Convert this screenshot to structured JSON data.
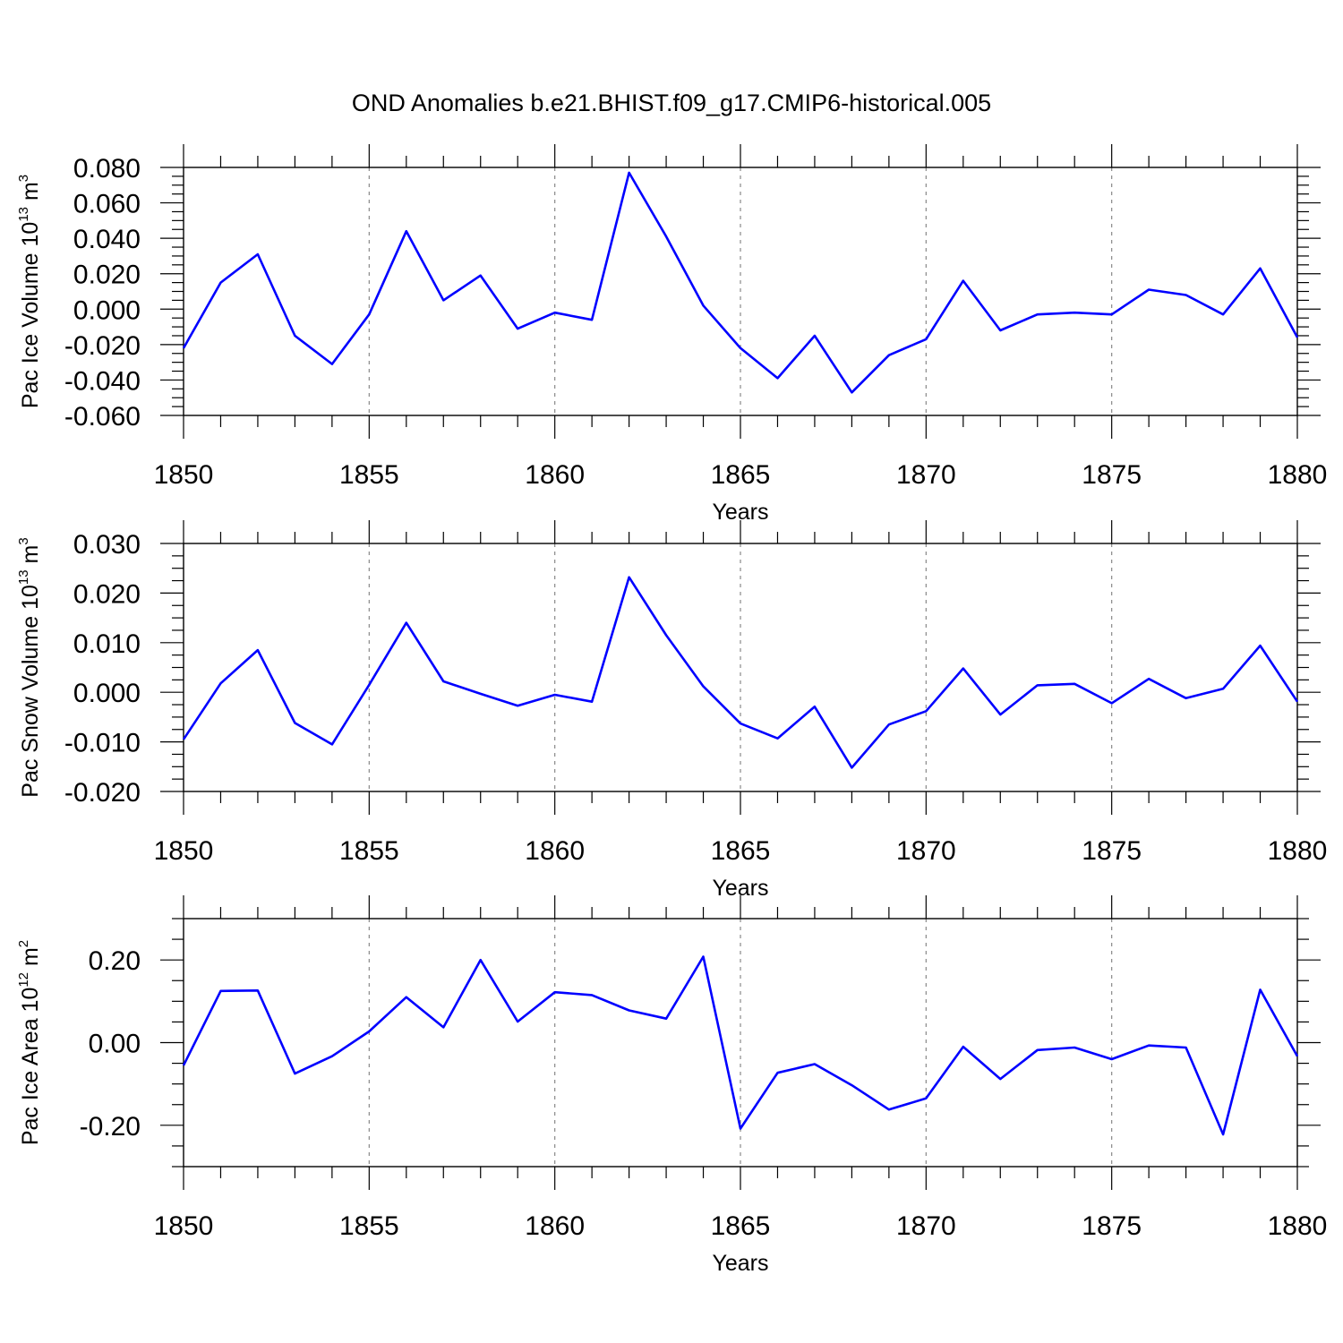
{
  "title": "OND Anomalies b.e21.BHIST.f09_g17.CMIP6-historical.005",
  "chart_data": [
    {
      "type": "line",
      "title": "",
      "xlabel": "Years",
      "ylabel_prefix": "Pac Ice Volume 10",
      "ylabel_exp": "13",
      "ylabel_unit": " m",
      "ylabel_unit_exp": "3",
      "xlim": [
        1850,
        1880
      ],
      "ylim": [
        -0.06,
        0.08
      ],
      "xticks": [
        1850,
        1855,
        1860,
        1865,
        1870,
        1875,
        1880
      ],
      "xtick_labels": [
        "1850",
        "1855",
        "1860",
        "1865",
        "1870",
        "1875",
        "1880"
      ],
      "yticks": [
        -0.06,
        -0.04,
        -0.02,
        0.0,
        0.02,
        0.04,
        0.06,
        0.08
      ],
      "ytick_labels": [
        "-0.060",
        "-0.040",
        "-0.020",
        "0.000",
        "0.020",
        "0.040",
        "0.060",
        "0.080"
      ],
      "grid": "vertical dashed at major x ticks",
      "color": "#0000ff",
      "x": [
        1850,
        1851,
        1852,
        1853,
        1854,
        1855,
        1856,
        1857,
        1858,
        1859,
        1860,
        1861,
        1862,
        1863,
        1864,
        1865,
        1866,
        1867,
        1868,
        1869,
        1870,
        1871,
        1872,
        1873,
        1874,
        1875,
        1876,
        1877,
        1878,
        1879,
        1880
      ],
      "y": [
        -0.022,
        0.015,
        0.031,
        -0.015,
        -0.031,
        -0.003,
        0.044,
        0.005,
        0.019,
        -0.011,
        -0.002,
        -0.006,
        0.077,
        0.041,
        0.002,
        -0.022,
        -0.039,
        -0.015,
        -0.047,
        -0.026,
        -0.017,
        0.016,
        -0.012,
        -0.003,
        -0.002,
        -0.003,
        0.011,
        0.008,
        -0.003,
        0.023,
        -0.016
      ]
    },
    {
      "type": "line",
      "title": "",
      "xlabel": "Years",
      "ylabel_prefix": "Pac Snow Volume 10",
      "ylabel_exp": "13",
      "ylabel_unit": " m",
      "ylabel_unit_exp": "3",
      "xlim": [
        1850,
        1880
      ],
      "ylim": [
        -0.02,
        0.03
      ],
      "xticks": [
        1850,
        1855,
        1860,
        1865,
        1870,
        1875,
        1880
      ],
      "xtick_labels": [
        "1850",
        "1855",
        "1860",
        "1865",
        "1870",
        "1875",
        "1880"
      ],
      "yticks": [
        -0.02,
        -0.01,
        0.0,
        0.01,
        0.02,
        0.03
      ],
      "ytick_labels": [
        "-0.020",
        "-0.010",
        "0.000",
        "0.010",
        "0.020",
        "0.030"
      ],
      "grid": "vertical dashed at major x ticks",
      "color": "#0000ff",
      "x": [
        1850,
        1851,
        1852,
        1853,
        1854,
        1855,
        1856,
        1857,
        1858,
        1859,
        1860,
        1861,
        1862,
        1863,
        1864,
        1865,
        1866,
        1867,
        1868,
        1869,
        1870,
        1871,
        1872,
        1873,
        1874,
        1875,
        1876,
        1877,
        1878,
        1879,
        1880
      ],
      "y": [
        -0.0095,
        0.0018,
        0.0085,
        -0.0062,
        -0.0105,
        0.0015,
        0.014,
        0.0022,
        -0.0003,
        -0.0027,
        -0.0005,
        -0.0019,
        0.0232,
        0.0115,
        0.0012,
        -0.0063,
        -0.0093,
        -0.0029,
        -0.0152,
        -0.0065,
        -0.0038,
        0.0048,
        -0.0045,
        0.0014,
        0.0017,
        -0.0022,
        0.0027,
        -0.0012,
        0.0007,
        0.0094,
        -0.0019
      ]
    },
    {
      "type": "line",
      "title": "",
      "xlabel": "Years",
      "ylabel_prefix": "Pac Ice Area 10",
      "ylabel_exp": "12",
      "ylabel_unit": " m",
      "ylabel_unit_exp": "2",
      "xlim": [
        1850,
        1880
      ],
      "ylim": [
        -0.3,
        0.3
      ],
      "xticks": [
        1850,
        1855,
        1860,
        1865,
        1870,
        1875,
        1880
      ],
      "xtick_labels": [
        "1850",
        "1855",
        "1860",
        "1865",
        "1870",
        "1875",
        "1880"
      ],
      "yticks": [
        -0.2,
        0.0,
        0.2
      ],
      "ytick_labels": [
        "-0.20",
        "0.00",
        "0.20"
      ],
      "grid": "vertical dashed at major x ticks",
      "color": "#0000ff",
      "x": [
        1850,
        1851,
        1852,
        1853,
        1854,
        1855,
        1856,
        1857,
        1858,
        1859,
        1860,
        1861,
        1862,
        1863,
        1864,
        1865,
        1866,
        1867,
        1868,
        1869,
        1870,
        1871,
        1872,
        1873,
        1874,
        1875,
        1876,
        1877,
        1878,
        1879,
        1880
      ],
      "y": [
        -0.055,
        0.125,
        0.126,
        -0.075,
        -0.033,
        0.027,
        0.11,
        0.037,
        0.2,
        0.051,
        0.122,
        0.115,
        0.078,
        0.058,
        0.208,
        -0.208,
        -0.073,
        -0.052,
        -0.103,
        -0.162,
        -0.135,
        -0.01,
        -0.088,
        -0.018,
        -0.012,
        -0.04,
        -0.007,
        -0.012,
        -0.222,
        0.128,
        -0.033
      ]
    }
  ]
}
